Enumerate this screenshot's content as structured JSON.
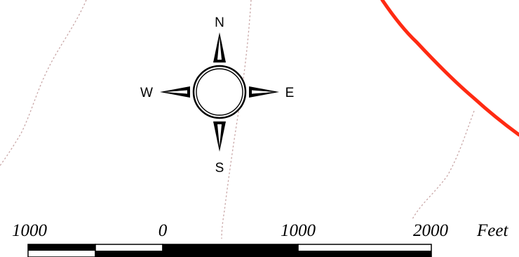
{
  "compass": {
    "north": "N",
    "east": "E",
    "south": "S",
    "west": "W"
  },
  "scale_bar": {
    "labels": [
      "1000",
      "0",
      "1000",
      "2000"
    ],
    "unit": "Feet"
  },
  "colors": {
    "route_line": "#ff2a12",
    "contour_line": "#c9a7a7",
    "ink": "#000000",
    "background": "#ffffff"
  }
}
